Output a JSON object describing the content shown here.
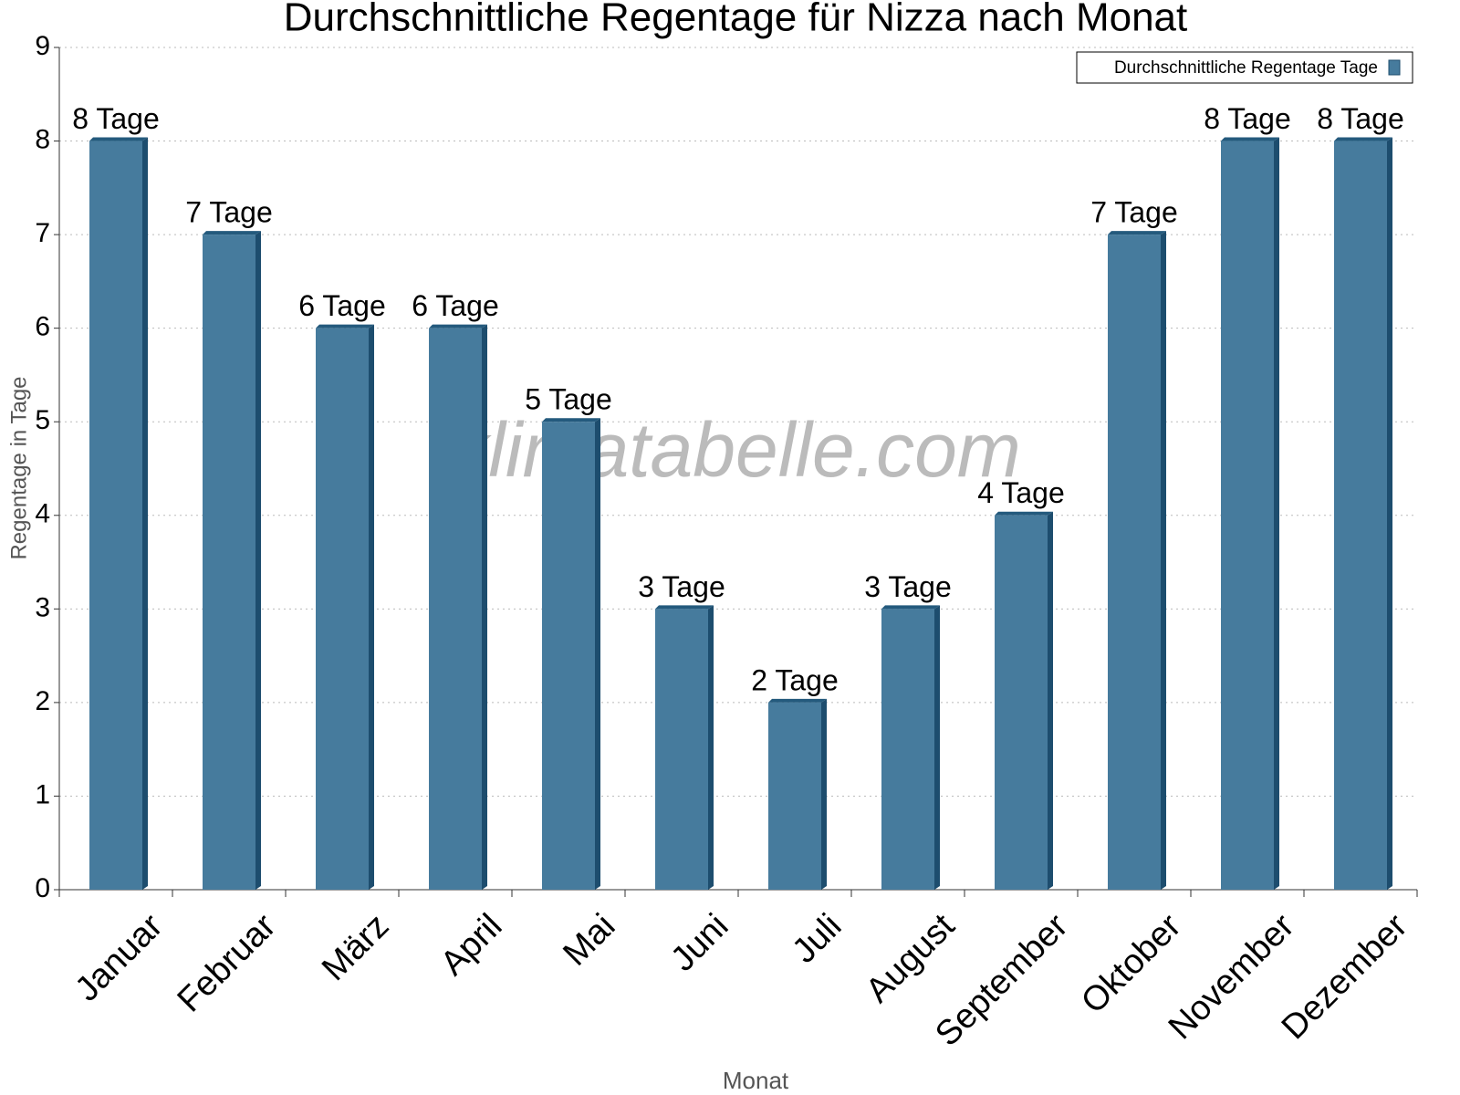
{
  "chart_data": {
    "type": "bar",
    "title": "Durchschnittliche Regentage für Nizza nach Monat",
    "x_label": "Monat",
    "y_label": "Regentage in Tage",
    "watermark": "klimatabelle.com",
    "categories": [
      "Januar",
      "Februar",
      "März",
      "April",
      "Mai",
      "Juni",
      "Juli",
      "August",
      "September",
      "Oktober",
      "November",
      "Dezember"
    ],
    "series": [
      {
        "name": "Durchschnittliche Regentage Tage",
        "color": "#467b9d",
        "values": [
          8,
          7,
          6,
          6,
          5,
          3,
          2,
          3,
          4,
          7,
          8,
          8
        ],
        "value_labels": [
          "8 Tage",
          "7 Tage",
          "6 Tage",
          "6 Tage",
          "5 Tage",
          "3 Tage",
          "2 Tage",
          "3 Tage",
          "4 Tage",
          "7 Tage",
          "8 Tage",
          "8 Tage"
        ]
      }
    ],
    "ylim": [
      0,
      9
    ],
    "yticks": [
      0,
      1,
      2,
      3,
      4,
      5,
      6,
      7,
      8,
      9
    ],
    "grid": true,
    "legend": "top-right"
  }
}
